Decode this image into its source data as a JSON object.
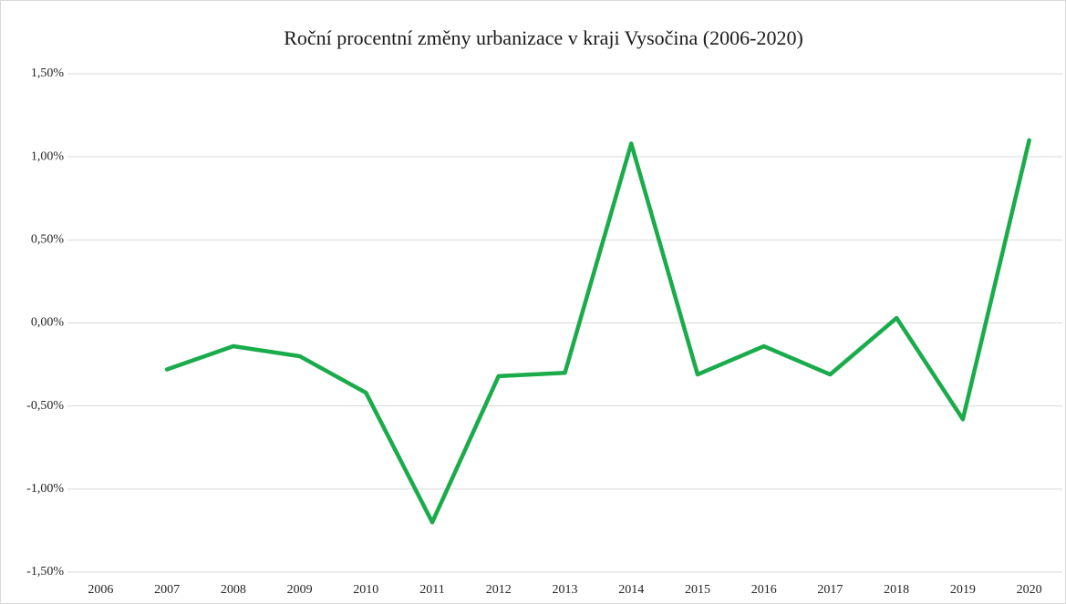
{
  "chart_data": {
    "type": "line",
    "title": "Roční procentní změny urbanizace v kraji Vysočina (2006-2020)",
    "categories": [
      "2006",
      "2007",
      "2008",
      "2009",
      "2010",
      "2011",
      "2012",
      "2013",
      "2014",
      "2015",
      "2016",
      "2017",
      "2018",
      "2019",
      "2020"
    ],
    "series": [
      {
        "color": "#1aab4b",
        "values": [
          null,
          -0.28,
          -0.14,
          -0.2,
          -0.42,
          -1.2,
          -0.32,
          -0.3,
          1.08,
          -0.31,
          -0.14,
          -0.31,
          0.03,
          -0.58,
          1.1
        ]
      }
    ],
    "ylim": [
      -1.5,
      1.5
    ],
    "yticks": [
      {
        "value": -1.5,
        "label": "-1,50%"
      },
      {
        "value": -1.0,
        "label": "-1,00%"
      },
      {
        "value": -0.5,
        "label": "-0,50%"
      },
      {
        "value": 0,
        "label": "0,00%"
      },
      {
        "value": 0.5,
        "label": "0,50%"
      },
      {
        "value": 1.0,
        "label": "1,00%"
      },
      {
        "value": 1.5,
        "label": "1,50%"
      }
    ],
    "grid": true
  }
}
